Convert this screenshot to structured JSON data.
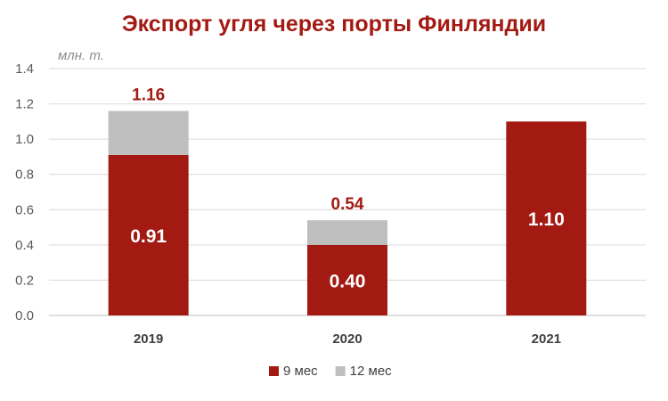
{
  "chart_data": {
    "type": "bar",
    "stacked": true,
    "title": "Экспорт угля через порты Финляндии",
    "unit_label": "млн. т.",
    "categories": [
      "2019",
      "2020",
      "2021"
    ],
    "series": [
      {
        "name": "9 мес",
        "values": [
          0.91,
          0.4,
          1.1
        ],
        "color": "#a31a12"
      },
      {
        "name": "12 мес",
        "values": [
          0.25,
          0.14,
          null
        ],
        "color": "#bfbfbf"
      }
    ],
    "inner_labels": [
      "0.91",
      "0.40",
      "1.10"
    ],
    "total_labels": [
      "1.16",
      "0.54",
      ""
    ],
    "ylim": [
      0,
      1.4
    ],
    "yticks": [
      "0.0",
      "0.2",
      "0.4",
      "0.6",
      "0.8",
      "1.0",
      "1.2",
      "1.4"
    ],
    "grid": true,
    "legend_position": "bottom"
  }
}
